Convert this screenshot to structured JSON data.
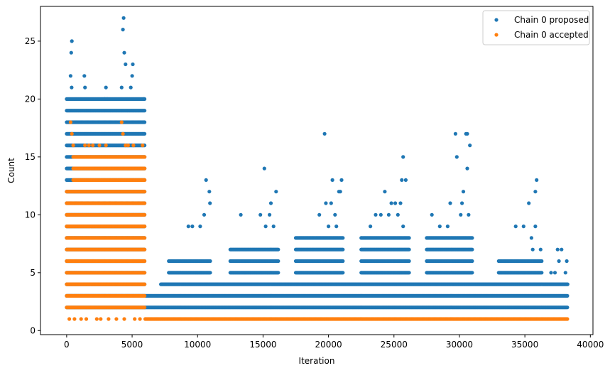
{
  "chart_data": {
    "type": "scatter",
    "title": "",
    "xlabel": "Iteration",
    "ylabel": "Count",
    "xlim": [
      -2000,
      40200
    ],
    "ylim": [
      -0.35,
      28.0
    ],
    "xticks": [
      0,
      5000,
      10000,
      15000,
      20000,
      25000,
      30000,
      35000,
      40000
    ],
    "xtick_labels": [
      "0",
      "5000",
      "10000",
      "15000",
      "20000",
      "25000",
      "30000",
      "35000",
      "40000"
    ],
    "yticks": [
      0,
      5,
      10,
      15,
      20,
      25
    ],
    "ytick_labels": [
      "0",
      "5",
      "10",
      "15",
      "20",
      "25"
    ],
    "grid": false,
    "legend_position": "top-right",
    "series": [
      {
        "name": "Chain 0 proposed",
        "color": "#1f77b4",
        "bands": [
          {
            "x_start": 0,
            "x_end": 6000,
            "y_values": [
              2,
              3,
              4,
              5,
              6,
              7,
              8,
              9,
              10,
              11,
              12,
              13,
              14,
              15,
              16,
              17,
              18,
              19,
              20
            ]
          },
          {
            "x_start": 6000,
            "x_end": 38300,
            "y_values": [
              2,
              3
            ]
          },
          {
            "x_start": 7200,
            "x_end": 38300,
            "y_values": [
              4
            ]
          },
          {
            "x_start": 7800,
            "x_end": 11000,
            "y_values": [
              5,
              6
            ]
          },
          {
            "x_start": 12500,
            "x_end": 16200,
            "y_values": [
              5,
              6,
              7
            ]
          },
          {
            "x_start": 17500,
            "x_end": 21100,
            "y_values": [
              5,
              6,
              7,
              8
            ]
          },
          {
            "x_start": 22500,
            "x_end": 26200,
            "y_values": [
              5,
              6,
              7,
              8
            ]
          },
          {
            "x_start": 27500,
            "x_end": 31000,
            "y_values": [
              5,
              6,
              7,
              8
            ]
          },
          {
            "x_start": 33000,
            "x_end": 36300,
            "y_values": [
              5,
              6
            ]
          }
        ],
        "extra_points": [
          [
            400,
            25
          ],
          [
            350,
            24
          ],
          [
            300,
            22
          ],
          [
            380,
            21
          ],
          [
            1350,
            22
          ],
          [
            1400,
            21
          ],
          [
            3000,
            21
          ],
          [
            2900,
            20
          ],
          [
            3100,
            20
          ],
          [
            4350,
            27
          ],
          [
            4300,
            26
          ],
          [
            4400,
            24
          ],
          [
            4500,
            23
          ],
          [
            5050,
            23
          ],
          [
            5000,
            22
          ],
          [
            4900,
            21
          ],
          [
            4200,
            21
          ],
          [
            5900,
            20
          ],
          [
            10650,
            13
          ],
          [
            10900,
            12
          ],
          [
            10950,
            11
          ],
          [
            10500,
            10
          ],
          [
            10200,
            9
          ],
          [
            9300,
            9
          ],
          [
            9600,
            9
          ],
          [
            15100,
            14
          ],
          [
            16000,
            12
          ],
          [
            15600,
            11
          ],
          [
            15500,
            10
          ],
          [
            13300,
            10
          ],
          [
            14800,
            10
          ],
          [
            15200,
            9
          ],
          [
            15800,
            9
          ],
          [
            19700,
            17
          ],
          [
            20300,
            13
          ],
          [
            21000,
            13
          ],
          [
            20800,
            12
          ],
          [
            20900,
            12
          ],
          [
            19800,
            11
          ],
          [
            20200,
            11
          ],
          [
            20500,
            10
          ],
          [
            19300,
            10
          ],
          [
            20000,
            9
          ],
          [
            20600,
            9
          ],
          [
            25700,
            15
          ],
          [
            25900,
            13
          ],
          [
            25600,
            13
          ],
          [
            24300,
            12
          ],
          [
            24800,
            11
          ],
          [
            25500,
            11
          ],
          [
            25100,
            11
          ],
          [
            23600,
            10
          ],
          [
            24000,
            10
          ],
          [
            24600,
            10
          ],
          [
            25300,
            10
          ],
          [
            25700,
            9
          ],
          [
            23200,
            9
          ],
          [
            29700,
            17
          ],
          [
            30500,
            17
          ],
          [
            30600,
            17
          ],
          [
            30800,
            16
          ],
          [
            29800,
            15
          ],
          [
            30600,
            14
          ],
          [
            30300,
            12
          ],
          [
            30200,
            11
          ],
          [
            29300,
            11
          ],
          [
            30100,
            10
          ],
          [
            30700,
            10
          ],
          [
            27900,
            10
          ],
          [
            28500,
            9
          ],
          [
            29100,
            9
          ],
          [
            35900,
            13
          ],
          [
            35800,
            12
          ],
          [
            35300,
            11
          ],
          [
            34300,
            9
          ],
          [
            34900,
            9
          ],
          [
            35800,
            9
          ],
          [
            35500,
            8
          ],
          [
            35600,
            7
          ],
          [
            36200,
            7
          ],
          [
            37500,
            7
          ],
          [
            37800,
            7
          ],
          [
            38200,
            6
          ],
          [
            37600,
            6
          ],
          [
            37000,
            5
          ],
          [
            38100,
            5
          ],
          [
            37300,
            5
          ]
        ]
      },
      {
        "name": "Chain 0 accepted",
        "color": "#ff7f0e",
        "bands": [
          {
            "x_start": 0,
            "x_end": 6000,
            "y_values": [
              2,
              3,
              4,
              5,
              6,
              7,
              8,
              9,
              10,
              11,
              12
            ]
          },
          {
            "x_start": 500,
            "x_end": 6000,
            "y_values": [
              13,
              14,
              15
            ]
          },
          {
            "x_start": 6000,
            "x_end": 38300,
            "y_values": [
              1
            ]
          }
        ],
        "extra_points": [
          [
            300,
            18
          ],
          [
            400,
            17
          ],
          [
            500,
            16
          ],
          [
            1400,
            16
          ],
          [
            1700,
            16
          ],
          [
            2500,
            16
          ],
          [
            3000,
            16
          ],
          [
            4200,
            18
          ],
          [
            4500,
            16
          ],
          [
            5100,
            16
          ],
          [
            5800,
            16
          ],
          [
            4300,
            17
          ],
          [
            4700,
            16
          ],
          [
            2000,
            16
          ],
          [
            200,
            1
          ],
          [
            600,
            1
          ],
          [
            1100,
            1
          ],
          [
            1500,
            1
          ],
          [
            2300,
            1
          ],
          [
            2600,
            1
          ],
          [
            3200,
            1
          ],
          [
            3800,
            1
          ],
          [
            4400,
            1
          ],
          [
            5200,
            1
          ],
          [
            5600,
            1
          ]
        ]
      }
    ]
  }
}
